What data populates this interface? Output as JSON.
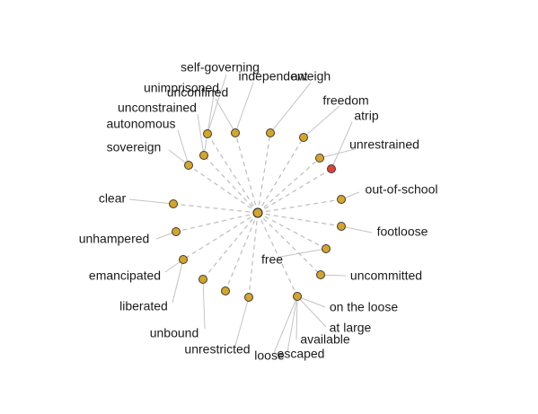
{
  "graph": {
    "center": {
      "label": "free"
    },
    "nodes": [
      {
        "id": "self-governing",
        "label": "self-governing"
      },
      {
        "id": "independent",
        "label": "independent"
      },
      {
        "id": "aweigh",
        "label": "aweigh"
      },
      {
        "id": "unimprisoned",
        "label": "unimprisoned"
      },
      {
        "id": "unconfined",
        "label": "unconfined"
      },
      {
        "id": "unconstrained",
        "label": "unconstrained"
      },
      {
        "id": "autonomous",
        "label": "autonomous"
      },
      {
        "id": "sovereign",
        "label": "sovereign"
      },
      {
        "id": "freedom",
        "label": "freedom"
      },
      {
        "id": "atrip",
        "label": "atrip",
        "highlight": true
      },
      {
        "id": "unrestrained",
        "label": "unrestrained"
      },
      {
        "id": "out-of-school",
        "label": "out-of-school"
      },
      {
        "id": "clear",
        "label": "clear"
      },
      {
        "id": "footloose",
        "label": "footloose"
      },
      {
        "id": "unhampered",
        "label": "unhampered"
      },
      {
        "id": "emancipated",
        "label": "emancipated"
      },
      {
        "id": "uncommitted",
        "label": "uncommitted"
      },
      {
        "id": "liberated",
        "label": "liberated"
      },
      {
        "id": "on-the-loose",
        "label": "on the loose"
      },
      {
        "id": "at-large",
        "label": "at large"
      },
      {
        "id": "available",
        "label": "available"
      },
      {
        "id": "unbound",
        "label": "unbound"
      },
      {
        "id": "unrestricted",
        "label": "unrestricted"
      },
      {
        "id": "escaped",
        "label": "escaped"
      },
      {
        "id": "loose",
        "label": "loose"
      }
    ],
    "colors": {
      "node": "#d4a52a",
      "node_stroke": "#3a3a3a",
      "highlight": "#e0403a",
      "spoke": "#bdbdbd",
      "leader": "#c4c4c4"
    }
  }
}
